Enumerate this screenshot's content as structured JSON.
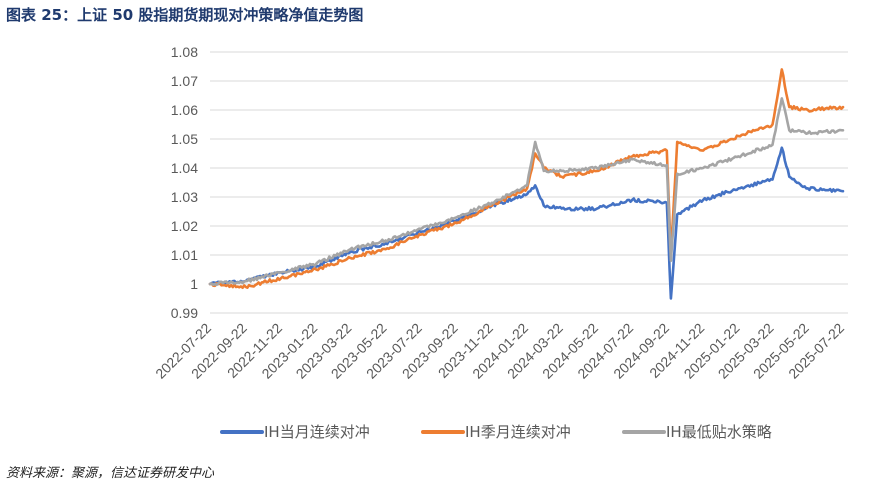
{
  "title": "图表 25：上证 50 股指期货期现对冲策略净值走势图",
  "source": "资料来源：聚源，信达证券研发中心",
  "chart_data": {
    "type": "line",
    "x_ticks": [
      "2022-07-22",
      "2022-09-22",
      "2022-11-22",
      "2023-01-22",
      "2023-03-22",
      "2023-05-22",
      "2023-07-22",
      "2023-09-22",
      "2023-11-22",
      "2024-01-22",
      "2024-03-22",
      "2024-05-22",
      "2024-07-22",
      "2024-09-22",
      "2024-11-22",
      "2025-01-22",
      "2025-03-22",
      "2025-05-22",
      "2025-07-22"
    ],
    "ylim": [
      0.99,
      1.08
    ],
    "y_ticks": [
      0.99,
      1,
      1.01,
      1.02,
      1.03,
      1.04,
      1.05,
      1.06,
      1.07,
      1.08
    ],
    "y_tick_labels": [
      "0.99",
      "1",
      "1.01",
      "1.02",
      "1.03",
      "1.04",
      "1.05",
      "1.06",
      "1.07",
      "1.08"
    ],
    "legend_position": "bottom",
    "series": [
      {
        "name": "IH当月连续对冲",
        "color": "#4472c4",
        "points": [
          [
            "2022-07-22",
            1.0
          ],
          [
            "2022-09-22",
            1.001
          ],
          [
            "2022-11-22",
            1.004
          ],
          [
            "2023-01-22",
            1.006
          ],
          [
            "2023-03-22",
            1.011
          ],
          [
            "2023-05-22",
            1.014
          ],
          [
            "2023-07-22",
            1.018
          ],
          [
            "2023-09-22",
            1.022
          ],
          [
            "2023-11-22",
            1.027
          ],
          [
            "2024-01-22",
            1.031
          ],
          [
            "2024-02-05",
            1.034
          ],
          [
            "2024-02-20",
            1.027
          ],
          [
            "2024-03-22",
            1.026
          ],
          [
            "2024-05-22",
            1.026
          ],
          [
            "2024-07-22",
            1.029
          ],
          [
            "2024-09-20",
            1.028
          ],
          [
            "2024-09-27",
            0.995
          ],
          [
            "2024-10-08",
            1.024
          ],
          [
            "2024-11-22",
            1.029
          ],
          [
            "2025-01-22",
            1.033
          ],
          [
            "2025-03-22",
            1.036
          ],
          [
            "2025-04-07",
            1.047
          ],
          [
            "2025-04-20",
            1.037
          ],
          [
            "2025-05-22",
            1.033
          ],
          [
            "2025-07-22",
            1.032
          ]
        ]
      },
      {
        "name": "IH季月连续对冲",
        "color": "#ed7d31",
        "points": [
          [
            "2022-07-22",
            1.0
          ],
          [
            "2022-09-22",
            0.999
          ],
          [
            "2022-11-22",
            1.002
          ],
          [
            "2023-01-22",
            1.005
          ],
          [
            "2023-03-22",
            1.009
          ],
          [
            "2023-05-22",
            1.012
          ],
          [
            "2023-07-22",
            1.017
          ],
          [
            "2023-09-22",
            1.021
          ],
          [
            "2023-11-22",
            1.027
          ],
          [
            "2024-01-22",
            1.033
          ],
          [
            "2024-02-05",
            1.045
          ],
          [
            "2024-02-20",
            1.04
          ],
          [
            "2024-03-22",
            1.037
          ],
          [
            "2024-05-22",
            1.039
          ],
          [
            "2024-07-22",
            1.044
          ],
          [
            "2024-09-20",
            1.046
          ],
          [
            "2024-09-27",
            1.01
          ],
          [
            "2024-10-08",
            1.049
          ],
          [
            "2024-11-22",
            1.046
          ],
          [
            "2025-01-22",
            1.051
          ],
          [
            "2025-03-22",
            1.055
          ],
          [
            "2025-04-07",
            1.074
          ],
          [
            "2025-04-20",
            1.061
          ],
          [
            "2025-05-22",
            1.06
          ],
          [
            "2025-07-22",
            1.061
          ]
        ]
      },
      {
        "name": "IH最低贴水策略",
        "color": "#a5a5a5",
        "points": [
          [
            "2022-07-22",
            1.0
          ],
          [
            "2022-09-22",
            1.001
          ],
          [
            "2022-11-22",
            1.004
          ],
          [
            "2023-01-22",
            1.007
          ],
          [
            "2023-03-22",
            1.012
          ],
          [
            "2023-05-22",
            1.015
          ],
          [
            "2023-07-22",
            1.019
          ],
          [
            "2023-09-22",
            1.023
          ],
          [
            "2023-11-22",
            1.028
          ],
          [
            "2024-01-22",
            1.034
          ],
          [
            "2024-02-05",
            1.049
          ],
          [
            "2024-02-20",
            1.039
          ],
          [
            "2024-03-22",
            1.039
          ],
          [
            "2024-05-22",
            1.04
          ],
          [
            "2024-07-22",
            1.043
          ],
          [
            "2024-09-20",
            1.041
          ],
          [
            "2024-09-27",
            1.008
          ],
          [
            "2024-10-08",
            1.038
          ],
          [
            "2024-11-22",
            1.04
          ],
          [
            "2025-01-22",
            1.044
          ],
          [
            "2025-03-22",
            1.048
          ],
          [
            "2025-04-07",
            1.064
          ],
          [
            "2025-04-20",
            1.053
          ],
          [
            "2025-05-22",
            1.052
          ],
          [
            "2025-07-22",
            1.053
          ]
        ]
      }
    ]
  }
}
